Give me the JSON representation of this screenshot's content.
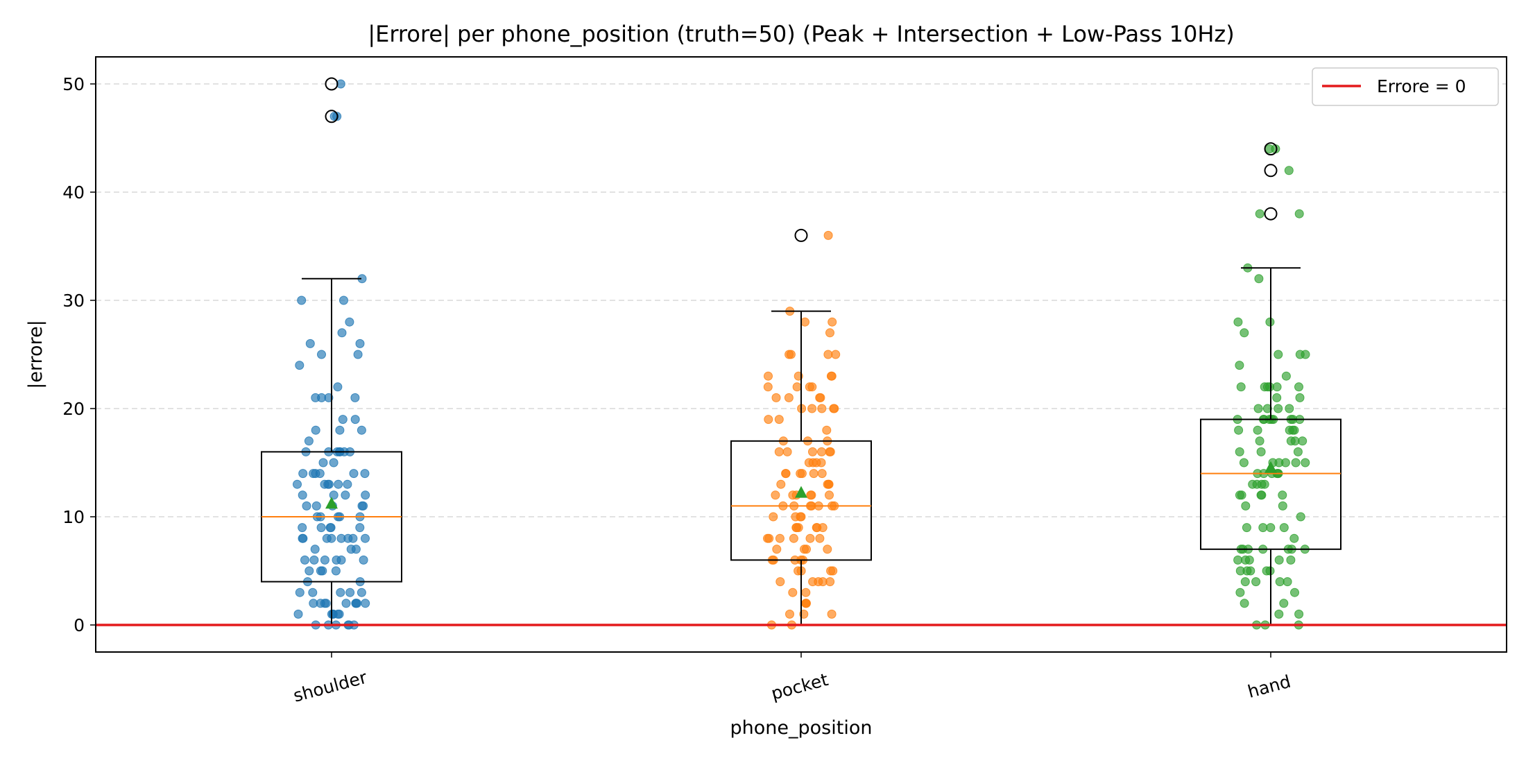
{
  "chart_data": {
    "type": "box",
    "title": "|Errore| per phone_position (truth=50) (Peak + Intersection + Low-Pass 10Hz)",
    "xlabel": "phone_position",
    "ylabel": "|errore|",
    "ylim": [
      -2.5,
      52.5
    ],
    "yticks": [
      0,
      10,
      20,
      30,
      40,
      50
    ],
    "grid": "horizontal dashed",
    "categories": [
      "shoulder",
      "pocket",
      "hand"
    ],
    "colors": {
      "shoulder": "#1f77b4",
      "pocket": "#ff7f0e",
      "hand": "#2ca02c",
      "median": "#ff7f0e",
      "mean": "#2ca02c",
      "reference": "#e41a1c"
    },
    "boxes": [
      {
        "category": "shoulder",
        "q1": 4,
        "median": 10,
        "q3": 16,
        "whisker_low": 0,
        "whisker_high": 32,
        "mean": 11.2,
        "outliers": [
          47,
          50
        ]
      },
      {
        "category": "pocket",
        "q1": 6,
        "median": 11,
        "q3": 17,
        "whisker_low": 0,
        "whisker_high": 29,
        "mean": 12.2,
        "outliers": [
          36
        ]
      },
      {
        "category": "hand",
        "q1": 7,
        "median": 14,
        "q3": 19,
        "whisker_low": 0,
        "whisker_high": 33,
        "mean": 14.5,
        "outliers": [
          38,
          42,
          44
        ]
      }
    ],
    "points": {
      "shoulder": [
        0,
        0,
        0,
        0,
        0,
        0,
        1,
        1,
        1,
        1,
        1,
        1,
        2,
        2,
        2,
        2,
        2,
        2,
        2,
        2,
        2,
        3,
        3,
        3,
        3,
        3,
        4,
        4,
        5,
        5,
        5,
        5,
        6,
        6,
        6,
        6,
        6,
        6,
        7,
        7,
        7,
        8,
        8,
        8,
        8,
        8,
        8,
        8,
        8,
        9,
        9,
        9,
        9,
        9,
        10,
        10,
        10,
        10,
        10,
        11,
        11,
        11,
        11,
        11,
        12,
        12,
        12,
        12,
        13,
        13,
        13,
        13,
        13,
        13,
        14,
        14,
        14,
        14,
        14,
        14,
        15,
        15,
        16,
        16,
        16,
        16,
        16,
        16,
        16,
        17,
        18,
        18,
        18,
        19,
        19,
        21,
        21,
        21,
        21,
        22,
        24,
        25,
        25,
        26,
        26,
        27,
        28,
        30,
        30,
        32,
        47,
        47,
        50
      ],
      "pocket": [
        0,
        0,
        1,
        1,
        1,
        2,
        2,
        2,
        3,
        3,
        4,
        4,
        4,
        4,
        4,
        5,
        5,
        5,
        5,
        6,
        6,
        6,
        6,
        6,
        7,
        7,
        7,
        7,
        8,
        8,
        8,
        8,
        8,
        8,
        9,
        9,
        9,
        9,
        9,
        9,
        10,
        10,
        10,
        10,
        11,
        11,
        11,
        11,
        11,
        11,
        11,
        12,
        12,
        12,
        12,
        12,
        12,
        13,
        13,
        13,
        13,
        14,
        14,
        14,
        14,
        14,
        14,
        15,
        15,
        15,
        15,
        16,
        16,
        16,
        16,
        16,
        16,
        17,
        17,
        17,
        18,
        19,
        19,
        20,
        20,
        20,
        20,
        20,
        21,
        21,
        21,
        21,
        22,
        22,
        22,
        22,
        23,
        23,
        23,
        23,
        25,
        25,
        25,
        25,
        27,
        28,
        28,
        29,
        36
      ],
      "hand": [
        0,
        0,
        0,
        1,
        1,
        2,
        2,
        3,
        3,
        4,
        4,
        4,
        4,
        5,
        5,
        5,
        5,
        5,
        6,
        6,
        6,
        6,
        6,
        7,
        7,
        7,
        7,
        7,
        7,
        7,
        8,
        9,
        9,
        9,
        9,
        10,
        11,
        11,
        12,
        12,
        12,
        12,
        12,
        13,
        13,
        13,
        13,
        14,
        14,
        14,
        14,
        14,
        14,
        15,
        15,
        15,
        15,
        15,
        15,
        16,
        16,
        16,
        17,
        17,
        17,
        17,
        18,
        18,
        18,
        18,
        18,
        19,
        19,
        19,
        19,
        19,
        19,
        19,
        19,
        19,
        20,
        20,
        20,
        20,
        21,
        21,
        22,
        22,
        22,
        22,
        22,
        22,
        23,
        24,
        25,
        25,
        25,
        27,
        28,
        28,
        32,
        33,
        38,
        38,
        42,
        44,
        44
      ]
    },
    "legend": {
      "label": "Errore = 0",
      "position": "top-right"
    }
  }
}
